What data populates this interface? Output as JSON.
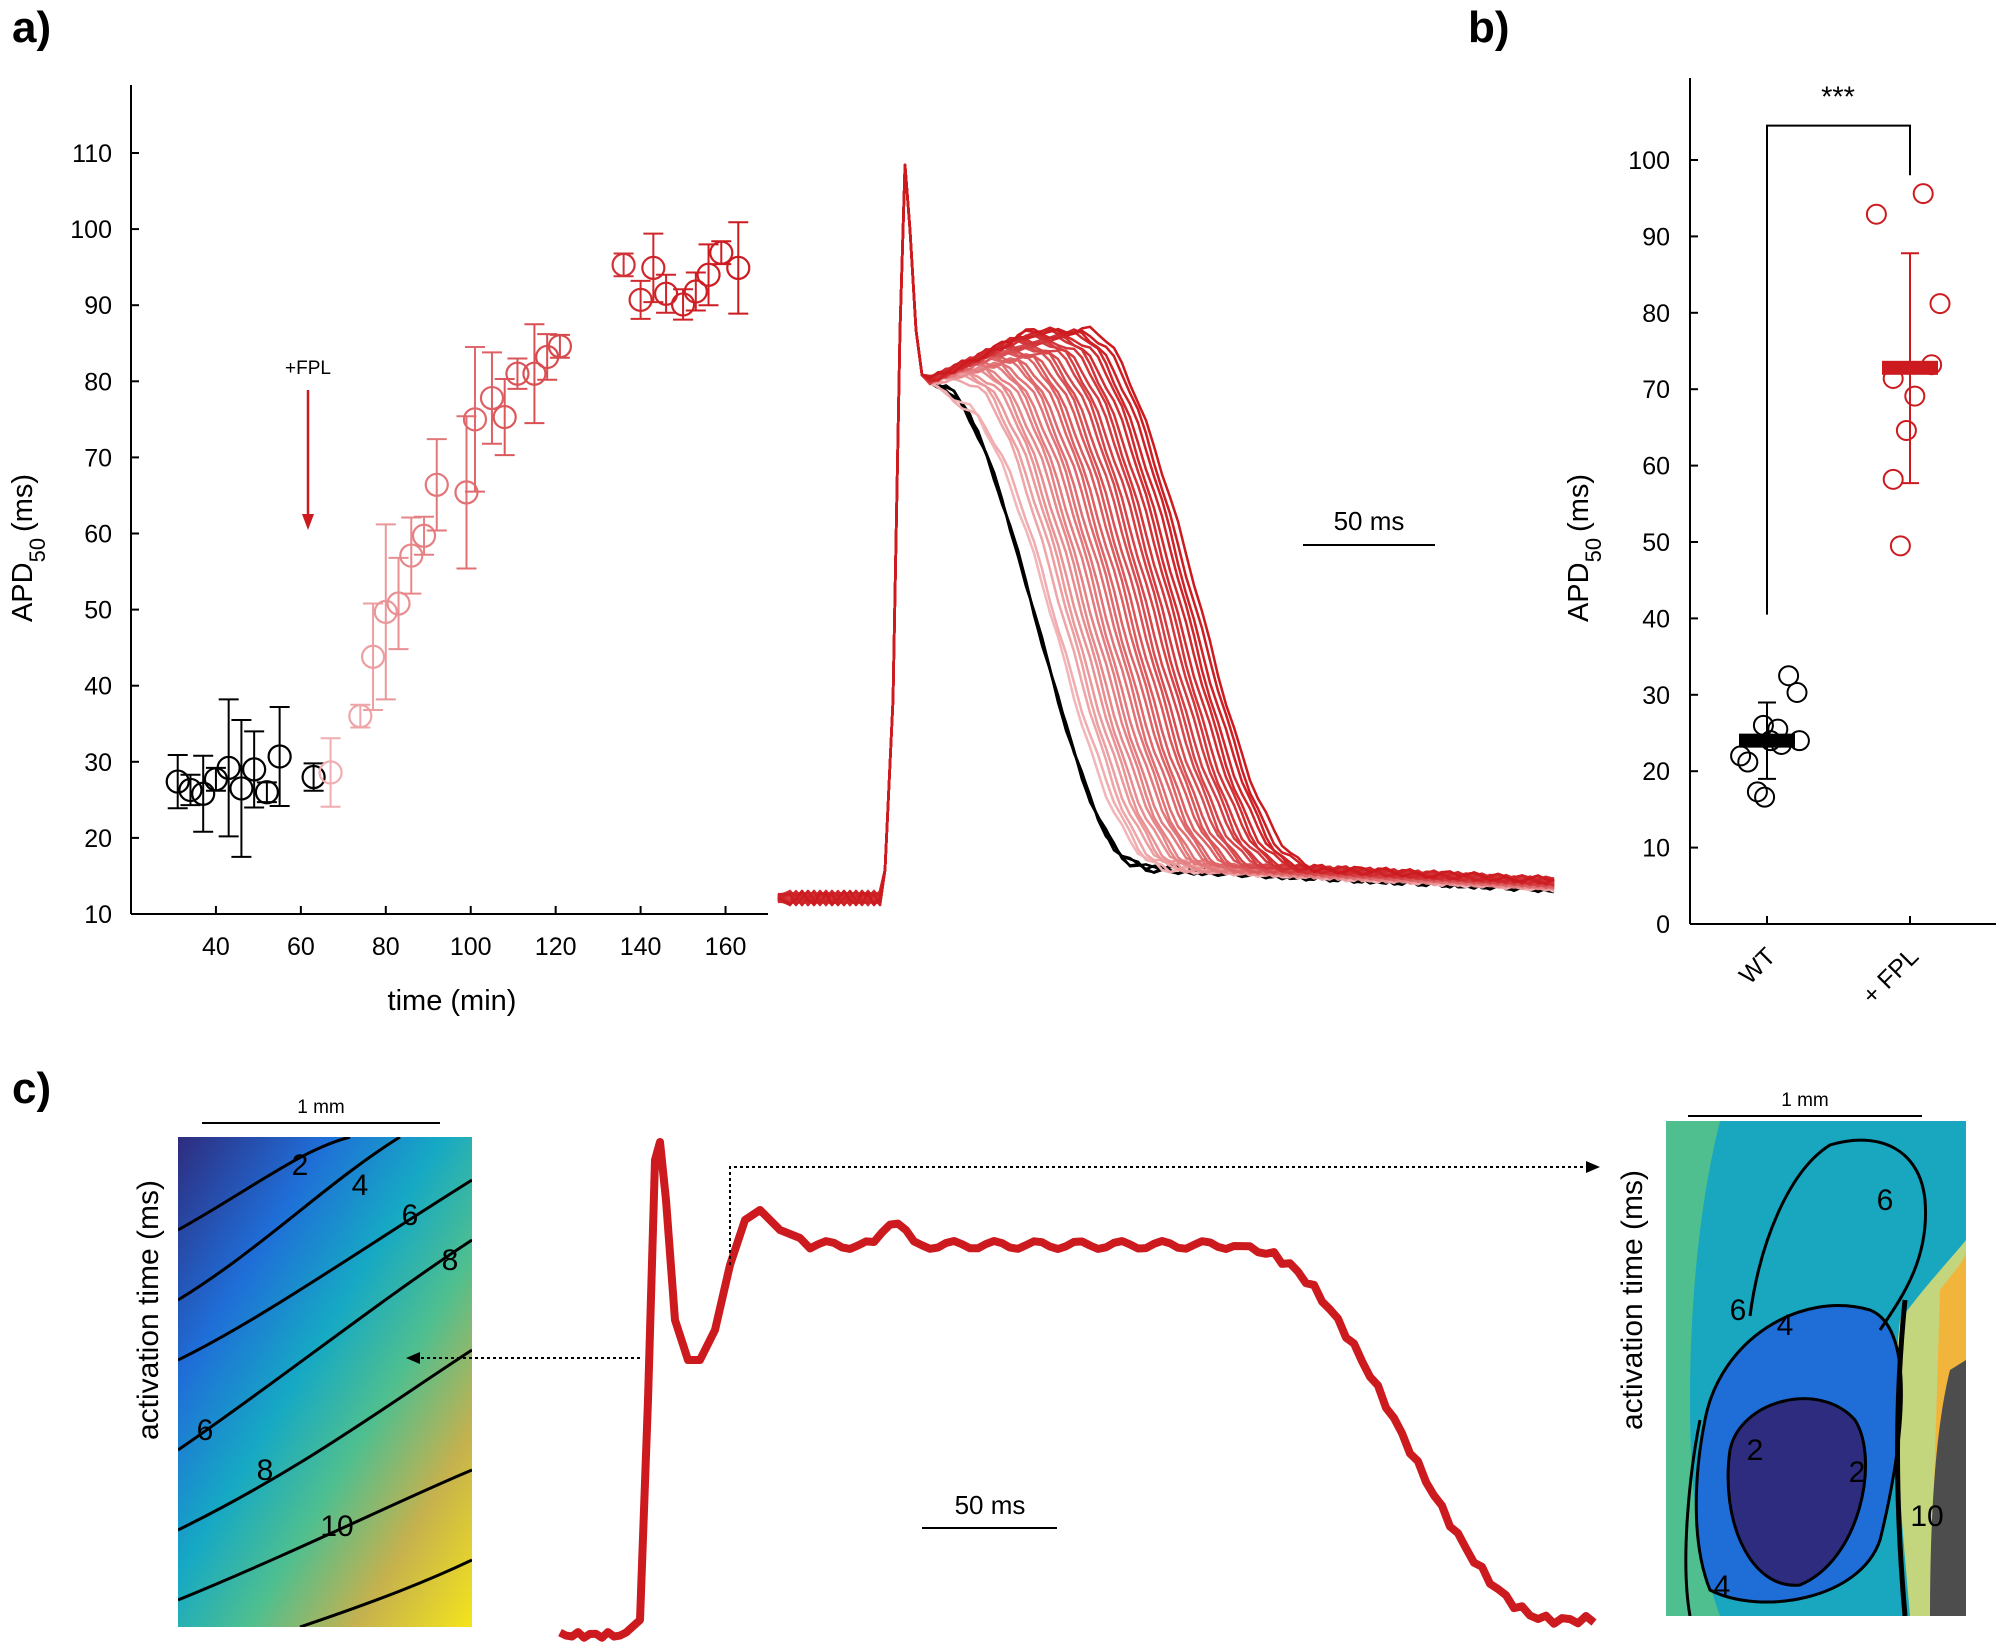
{
  "panels": {
    "a": "a)",
    "b": "b)",
    "c": "c)"
  },
  "colors": {
    "wt": "#000000",
    "fpl": "#cc1a1f",
    "light": "#f2b6b8"
  },
  "chart_data": [
    {
      "id": "a-timecourse",
      "type": "scatter",
      "xlabel": "time (min)",
      "ylabel": "APD",
      "ylabel_sub": "50",
      "ylabel_unit": "(ms)",
      "xticks": [
        "40",
        "60",
        "80",
        "100",
        "120",
        "140",
        "160"
      ],
      "yticks": [
        "10",
        "20",
        "30",
        "40",
        "50",
        "60",
        "70",
        "80",
        "90",
        "100",
        "110"
      ],
      "xlim": [
        20,
        170
      ],
      "ylim": [
        10,
        120
      ],
      "annotation": "+FPL",
      "annotation_x": 63,
      "points": [
        {
          "x": 31,
          "y": 27.4,
          "err": 3.5,
          "phase": 0
        },
        {
          "x": 34,
          "y": 26.3,
          "err": 2.0,
          "phase": 0
        },
        {
          "x": 37,
          "y": 25.8,
          "err": 5.0,
          "phase": 0
        },
        {
          "x": 40,
          "y": 27.7,
          "err": 1.5,
          "phase": 0
        },
        {
          "x": 43,
          "y": 29.2,
          "err": 9.0,
          "phase": 0
        },
        {
          "x": 46,
          "y": 26.5,
          "err": 9.0,
          "phase": 0
        },
        {
          "x": 49,
          "y": 29.0,
          "err": 5.0,
          "phase": 0
        },
        {
          "x": 52,
          "y": 26.0,
          "err": 1.3,
          "phase": 0
        },
        {
          "x": 55,
          "y": 30.7,
          "err": 6.5,
          "phase": 0
        },
        {
          "x": 63,
          "y": 28.0,
          "err": 1.8,
          "phase": 0
        },
        {
          "x": 67,
          "y": 28.6,
          "err": 4.5,
          "phase": 0.05
        },
        {
          "x": 74,
          "y": 36.0,
          "err": 1.5,
          "phase": 0.1
        },
        {
          "x": 77,
          "y": 43.8,
          "err": 7.0,
          "phase": 0.15
        },
        {
          "x": 80,
          "y": 49.7,
          "err": 11.5,
          "phase": 0.2
        },
        {
          "x": 83,
          "y": 50.8,
          "err": 6.0,
          "phase": 0.25
        },
        {
          "x": 86,
          "y": 57.1,
          "err": 5.0,
          "phase": 0.3
        },
        {
          "x": 89,
          "y": 59.7,
          "err": 2.5,
          "phase": 0.35
        },
        {
          "x": 92,
          "y": 66.4,
          "err": 6.0,
          "phase": 0.4
        },
        {
          "x": 99,
          "y": 65.4,
          "err": 10.0,
          "phase": 0.45
        },
        {
          "x": 101,
          "y": 75.0,
          "err": 9.5,
          "phase": 0.5
        },
        {
          "x": 105,
          "y": 77.8,
          "err": 6.0,
          "phase": 0.55
        },
        {
          "x": 108,
          "y": 75.3,
          "err": 5.0,
          "phase": 0.6
        },
        {
          "x": 111,
          "y": 81.0,
          "err": 2.0,
          "phase": 0.62
        },
        {
          "x": 115,
          "y": 81.0,
          "err": 6.5,
          "phase": 0.65
        },
        {
          "x": 118,
          "y": 83.2,
          "err": 3.0,
          "phase": 0.68
        },
        {
          "x": 121,
          "y": 84.6,
          "err": 1.5,
          "phase": 0.7
        },
        {
          "x": 136,
          "y": 95.3,
          "err": 1.5,
          "phase": 0.85
        },
        {
          "x": 140,
          "y": 90.7,
          "err": 2.5,
          "phase": 0.9
        },
        {
          "x": 143,
          "y": 94.9,
          "err": 4.5,
          "phase": 0.92
        },
        {
          "x": 146,
          "y": 91.5,
          "err": 2.5,
          "phase": 0.94
        },
        {
          "x": 150,
          "y": 90.1,
          "err": 2.0,
          "phase": 0.96
        },
        {
          "x": 153,
          "y": 91.8,
          "err": 2.5,
          "phase": 0.97
        },
        {
          "x": 156,
          "y": 94.0,
          "err": 4.0,
          "phase": 0.98
        },
        {
          "x": 159,
          "y": 96.9,
          "err": 1.5,
          "phase": 0.99
        },
        {
          "x": 163,
          "y": 94.9,
          "err": 6.0,
          "phase": 1.0
        }
      ]
    },
    {
      "id": "a-traces",
      "type": "line",
      "scalebar": "50 ms",
      "series_count": 36
    },
    {
      "id": "b-summary",
      "type": "scatter",
      "categories": [
        "WT",
        "+ FPL"
      ],
      "ylabel": "APD",
      "ylabel_sub": "50",
      "ylabel_unit": "(ms)",
      "yticks": [
        "0",
        "10",
        "20",
        "30",
        "40",
        "50",
        "60",
        "70",
        "80",
        "90",
        "100"
      ],
      "ylim": [
        0,
        110
      ],
      "significance": "***",
      "groups": [
        {
          "name": "WT",
          "mean": 24,
          "sd_low": 19,
          "sd_high": 29,
          "points": [
            [
              -0.22,
              22.0
            ],
            [
              -0.16,
              21.2
            ],
            [
              -0.03,
              26.0
            ],
            [
              0.03,
              24.0
            ],
            [
              -0.08,
              17.3
            ],
            [
              -0.02,
              16.6
            ],
            [
              0.09,
              25.5
            ],
            [
              0.18,
              32.5
            ],
            [
              0.25,
              30.3
            ],
            [
              0.27,
              24.0
            ],
            [
              0.12,
              23.5
            ]
          ]
        },
        {
          "name": "+ FPL",
          "mean": 72.8,
          "sd_low": 57.7,
          "sd_high": 87.8,
          "points": [
            [
              -0.28,
              92.9
            ],
            [
              0.11,
              95.6
            ],
            [
              0.25,
              81.2
            ],
            [
              0.18,
              73.2
            ],
            [
              -0.14,
              71.4
            ],
            [
              0.04,
              69.1
            ],
            [
              -0.03,
              64.6
            ],
            [
              -0.14,
              58.2
            ],
            [
              -0.08,
              49.5
            ]
          ]
        }
      ]
    },
    {
      "id": "c-left-map",
      "type": "heatmap",
      "colorbar_label": "activation time (ms)",
      "scalebar": "1 mm",
      "contour_labels": [
        "2",
        "4",
        "6",
        "8",
        "6",
        "8",
        "10"
      ]
    },
    {
      "id": "c-trace",
      "type": "line",
      "scalebar": "50 ms"
    },
    {
      "id": "c-right-map",
      "type": "heatmap",
      "colorbar_label": "activation time (ms)",
      "scalebar": "1 mm",
      "contour_labels": [
        "6",
        "6",
        "4",
        "2",
        "2",
        "10",
        "4"
      ]
    }
  ]
}
